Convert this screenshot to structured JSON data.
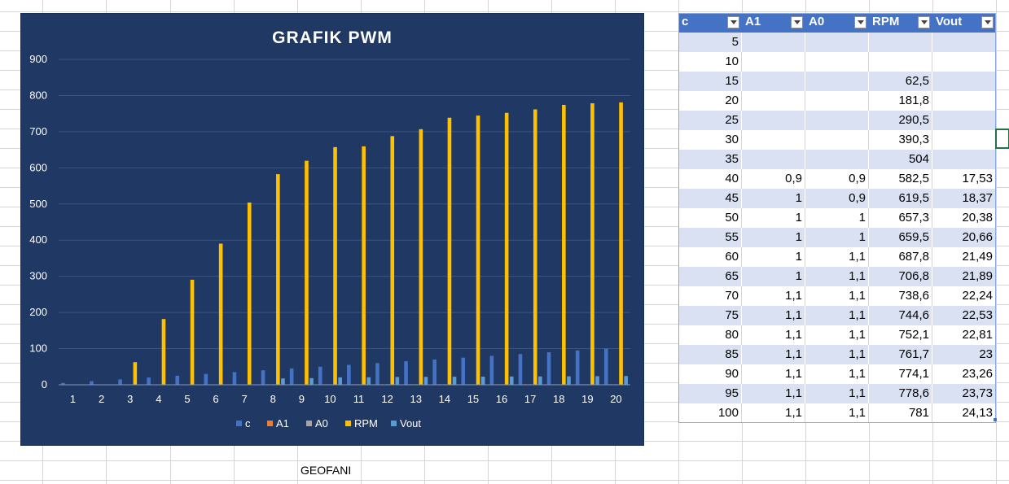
{
  "chart": {
    "title": "GRAFIK PWM"
  },
  "chart_data": {
    "type": "bar",
    "title": "GRAFIK PWM",
    "categories": [
      "1",
      "2",
      "3",
      "4",
      "5",
      "6",
      "7",
      "8",
      "9",
      "10",
      "11",
      "12",
      "13",
      "14",
      "15",
      "16",
      "17",
      "18",
      "19",
      "20"
    ],
    "y_ticks": [
      "0",
      "100",
      "200",
      "300",
      "400",
      "500",
      "600",
      "700",
      "800",
      "900"
    ],
    "ylim": [
      0,
      900
    ],
    "grid": true,
    "legend_position": "bottom",
    "series": [
      {
        "name": "c",
        "color": "#4472c4",
        "values": [
          5,
          10,
          15,
          20,
          25,
          30,
          35,
          40,
          45,
          50,
          55,
          60,
          65,
          70,
          75,
          80,
          85,
          90,
          95,
          100
        ]
      },
      {
        "name": "A1",
        "color": "#ed7d31",
        "values": [
          null,
          null,
          null,
          null,
          null,
          null,
          null,
          0.9,
          1,
          1,
          1,
          1,
          1,
          1.1,
          1.1,
          1.1,
          1.1,
          1.1,
          1.1,
          1.1
        ]
      },
      {
        "name": "A0",
        "color": "#a5a5a5",
        "values": [
          null,
          null,
          null,
          null,
          null,
          null,
          null,
          0.9,
          0.9,
          1,
          1,
          1.1,
          1.1,
          1.1,
          1.1,
          1.1,
          1.1,
          1.1,
          1.1,
          1.1
        ]
      },
      {
        "name": "RPM",
        "color": "#ffc000",
        "values": [
          null,
          null,
          62.5,
          181.8,
          290.5,
          390.3,
          504,
          582.5,
          619.5,
          657.3,
          659.5,
          687.8,
          706.8,
          738.6,
          744.6,
          752.1,
          761.7,
          774.1,
          778.6,
          781
        ]
      },
      {
        "name": "Vout",
        "color": "#5b9bd5",
        "values": [
          null,
          null,
          null,
          null,
          null,
          null,
          null,
          17.53,
          18.37,
          20.38,
          20.66,
          21.49,
          21.89,
          22.24,
          22.53,
          22.81,
          23,
          23.26,
          23.73,
          24.13
        ]
      }
    ]
  },
  "table": {
    "headers": [
      "c",
      "A1",
      "A0",
      "RPM",
      "Vout"
    ],
    "rows": [
      [
        "5",
        "",
        "",
        "",
        ""
      ],
      [
        "10",
        "",
        "",
        "",
        ""
      ],
      [
        "15",
        "",
        "",
        "62,5",
        ""
      ],
      [
        "20",
        "",
        "",
        "181,8",
        ""
      ],
      [
        "25",
        "",
        "",
        "290,5",
        ""
      ],
      [
        "30",
        "",
        "",
        "390,3",
        ""
      ],
      [
        "35",
        "",
        "",
        "504",
        ""
      ],
      [
        "40",
        "0,9",
        "0,9",
        "582,5",
        "17,53"
      ],
      [
        "45",
        "1",
        "0,9",
        "619,5",
        "18,37"
      ],
      [
        "50",
        "1",
        "1",
        "657,3",
        "20,38"
      ],
      [
        "55",
        "1",
        "1",
        "659,5",
        "20,66"
      ],
      [
        "60",
        "1",
        "1,1",
        "687,8",
        "21,49"
      ],
      [
        "65",
        "1",
        "1,1",
        "706,8",
        "21,89"
      ],
      [
        "70",
        "1,1",
        "1,1",
        "738,6",
        "22,24"
      ],
      [
        "75",
        "1,1",
        "1,1",
        "744,6",
        "22,53"
      ],
      [
        "80",
        "1,1",
        "1,1",
        "752,1",
        "22,81"
      ],
      [
        "85",
        "1,1",
        "1,1",
        "761,7",
        "23"
      ],
      [
        "90",
        "1,1",
        "1,1",
        "774,1",
        "23,26"
      ],
      [
        "95",
        "1,1",
        "1,1",
        "778,6",
        "23,73"
      ],
      [
        "100",
        "1,1",
        "1,1",
        "781",
        "24,13"
      ]
    ]
  },
  "cell_text": {
    "label": "GEOFANI"
  },
  "colors": {
    "chart_bg": "#203864",
    "header_bg": "#4472c4",
    "band": "#d9e1f2",
    "selection": "#217346"
  }
}
